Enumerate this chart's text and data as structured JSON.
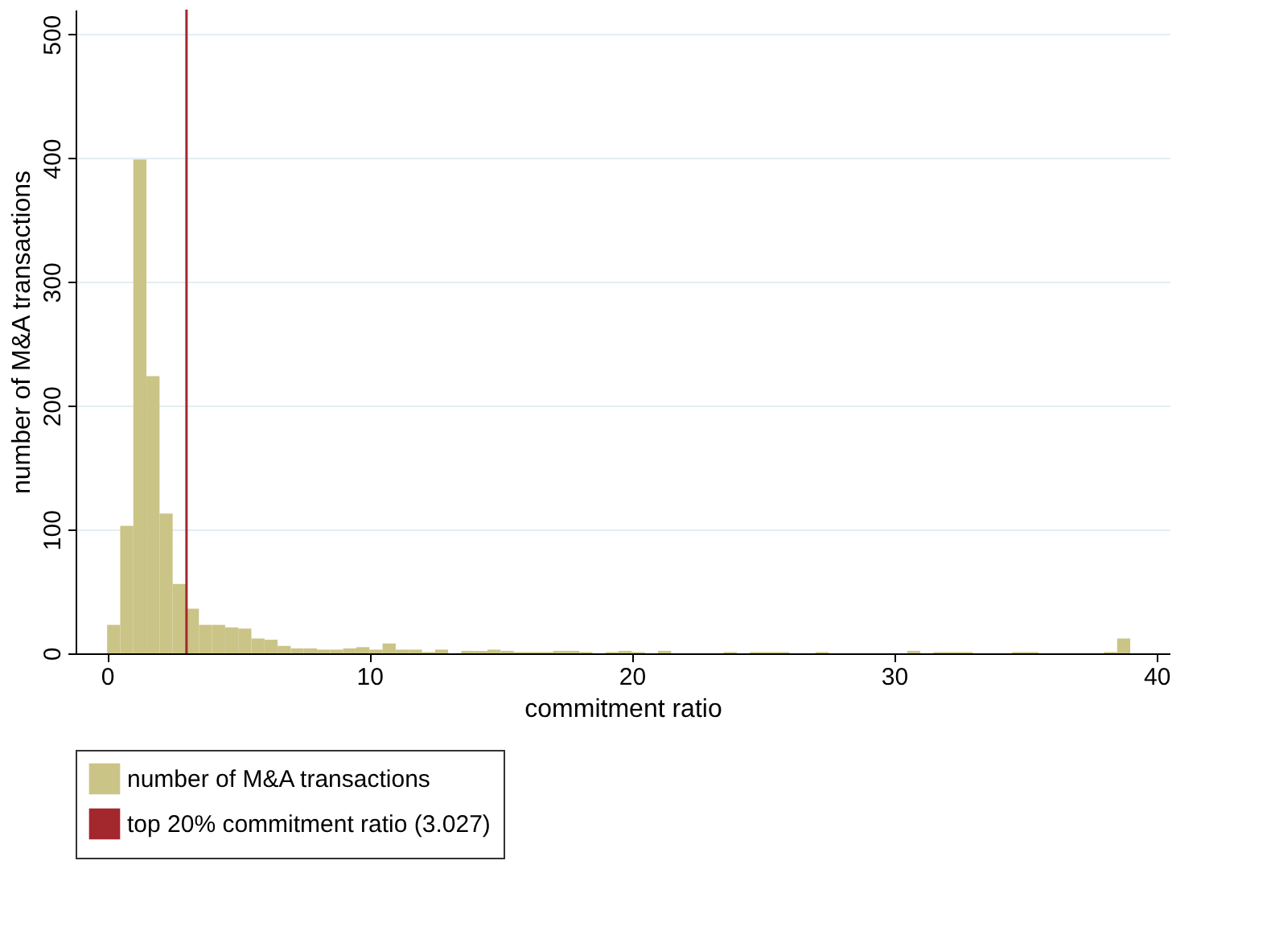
{
  "chart_data": {
    "type": "histogram",
    "xlabel": "commitment ratio",
    "ylabel": "number of M&A transactions",
    "bins": [
      0,
      0.5,
      1,
      1.5,
      2,
      2.5,
      3,
      3.5,
      4,
      4.5,
      5,
      5.5,
      6,
      6.5,
      7,
      7.5,
      8,
      8.5,
      9,
      9.5,
      10,
      10.5,
      11,
      11.5,
      12,
      12.5,
      13,
      13.5,
      14,
      14.5,
      15,
      15.5,
      16,
      16.5,
      17,
      17.5,
      18,
      18.5,
      19,
      19.5,
      20,
      20.5,
      21,
      21.5,
      22,
      22.5,
      23,
      23.5,
      24,
      24.5,
      25,
      25.5,
      26,
      26.5,
      27,
      27.5,
      28,
      28.5,
      29,
      29.5,
      30,
      30.5,
      31,
      31.5,
      32,
      32.5,
      33,
      33.5,
      34,
      34.5,
      35,
      35.5,
      36,
      36.5,
      37,
      37.5,
      38,
      38.5,
      39
    ],
    "series": [
      {
        "name": "number of M&A transactions",
        "color": "#cbc487",
        "values": [
          23,
          103,
          399,
          224,
          113,
          56,
          36,
          23,
          23,
          21,
          20,
          12,
          11,
          6,
          4,
          4,
          3,
          3,
          4,
          5,
          3,
          8,
          3,
          3,
          1,
          3,
          0,
          2,
          2,
          3,
          2,
          1,
          1,
          1,
          2,
          2,
          1,
          0,
          1,
          2,
          1,
          0,
          2,
          0,
          0,
          0,
          0,
          1,
          0,
          1,
          1,
          1,
          0,
          0,
          1,
          0,
          0,
          0,
          0,
          0,
          0,
          2,
          0,
          1,
          1,
          1,
          0,
          0,
          0,
          1,
          1,
          0,
          0,
          0,
          0,
          0,
          1,
          12
        ]
      }
    ],
    "ref_lines": [
      {
        "axis": "x",
        "value": 3.027,
        "label": "top 20% commitment ratio (3.027)",
        "color": "#a3282e"
      }
    ],
    "xlim": [
      -1.2,
      40.5
    ],
    "xticks": [
      0,
      10,
      20,
      30,
      40
    ],
    "ylim": [
      0,
      520
    ],
    "yticks": [
      0,
      100,
      200,
      300,
      400,
      500
    ],
    "grid": "y",
    "legend": "bottom"
  }
}
